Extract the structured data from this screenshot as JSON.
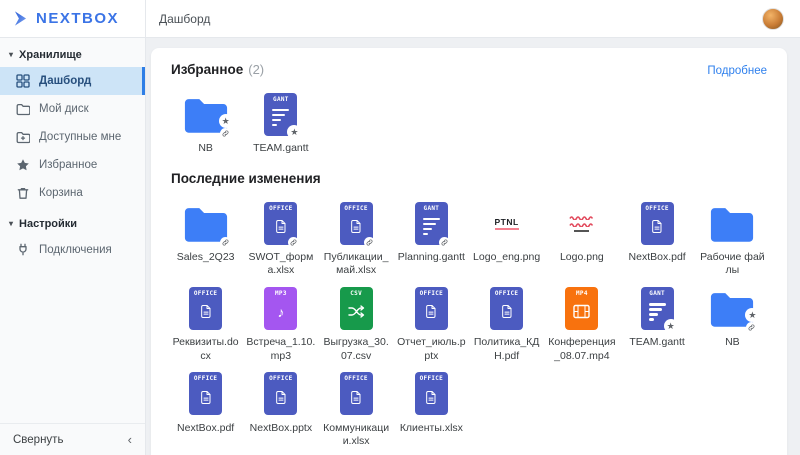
{
  "topbar": {
    "logo": "NEXTBOX",
    "breadcrumb": "Дашборд"
  },
  "sidebar": {
    "sections": [
      {
        "label": "Хранилище",
        "items": [
          {
            "label": "Дашборд",
            "icon": "dashboard",
            "active": true
          },
          {
            "label": "Мой диск",
            "icon": "my-disk"
          },
          {
            "label": "Доступные мне",
            "icon": "shared-with-me"
          },
          {
            "label": "Избранное",
            "icon": "favorites"
          },
          {
            "label": "Корзина",
            "icon": "trash"
          }
        ]
      },
      {
        "label": "Настройки",
        "items": [
          {
            "label": "Подключения",
            "icon": "connections"
          }
        ]
      }
    ],
    "collapse_label": "Свернуть"
  },
  "favorites": {
    "title": "Избранное",
    "count": "(2)",
    "more_link": "Подробнее",
    "items": [
      {
        "name": "NB",
        "type": "folder",
        "badges": [
          "star",
          "link"
        ]
      },
      {
        "name": "TEAM.gantt",
        "type": "gantt",
        "badges": [
          "star"
        ]
      }
    ]
  },
  "recent": {
    "title": "Последние изменения",
    "items": [
      {
        "name": "Sales_2Q23",
        "type": "folder",
        "badges": [
          "link"
        ]
      },
      {
        "name": "SWOT_форма.xlsx",
        "type": "office",
        "badges": [
          "link"
        ]
      },
      {
        "name": "Публикации_май.xlsx",
        "type": "office",
        "badges": [
          "link"
        ]
      },
      {
        "name": "Planning.gantt",
        "type": "gantt",
        "badges": [
          "link"
        ]
      },
      {
        "name": "Logo_eng.png",
        "type": "image-ptnl",
        "badges": []
      },
      {
        "name": "Logo.png",
        "type": "image-waves",
        "badges": []
      },
      {
        "name": "NextBox.pdf",
        "type": "office",
        "badges": []
      },
      {
        "name": "Рабочие файлы",
        "type": "folder",
        "badges": []
      },
      {
        "name": "Реквизиты.docx",
        "type": "office",
        "badges": []
      },
      {
        "name": "Встреча_1.10.mp3",
        "type": "mp3",
        "badges": []
      },
      {
        "name": "Выгрузка_30.07.csv",
        "type": "csv",
        "badges": []
      },
      {
        "name": "Отчет_июль.pptx",
        "type": "office",
        "badges": []
      },
      {
        "name": "Политика_КДН.pdf",
        "type": "office",
        "badges": []
      },
      {
        "name": "Конференция_08.07.mp4",
        "type": "mp4",
        "badges": []
      },
      {
        "name": "TEAM.gantt",
        "type": "gantt",
        "badges": [
          "star"
        ]
      },
      {
        "name": "NB",
        "type": "folder",
        "badges": [
          "star",
          "link"
        ]
      },
      {
        "name": "NextBox.pdf",
        "type": "office",
        "badges": []
      },
      {
        "name": "NextBox.pptx",
        "type": "office",
        "badges": []
      },
      {
        "name": "Коммуникации.xlsx",
        "type": "office",
        "badges": []
      },
      {
        "name": "Клиенты.xlsx",
        "type": "office",
        "badges": []
      }
    ]
  },
  "file_type_labels": {
    "office": "OFFICE",
    "gantt": "GANT",
    "mp3": "MP3",
    "csv": "CSV",
    "mp4": "MP4"
  },
  "image_thumbs": {
    "ptnl_text": "PTNL"
  },
  "icons": {
    "section_caret": "▾",
    "collapse_chevron": "‹",
    "star_badge": "★",
    "music_note": "♪"
  },
  "colors": {
    "folder": "#3d7ef7",
    "office": "#4c5bc0",
    "mp3": "#a456f0",
    "csv": "#179a4b",
    "mp4": "#f8720e",
    "accent": "#2f80ed",
    "selected_bg": "#cde4f7"
  }
}
